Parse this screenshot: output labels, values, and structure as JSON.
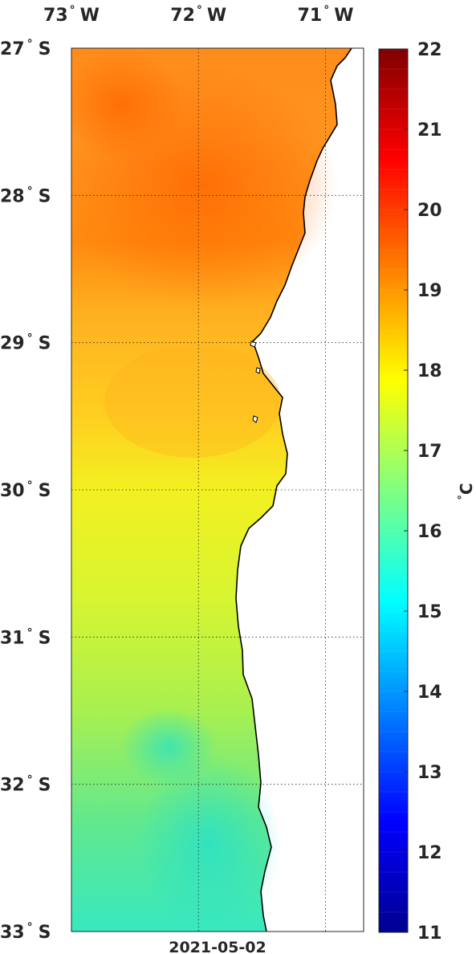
{
  "map": {
    "date_label": "2021-05-02",
    "lon_ticks": [
      {
        "label": "73",
        "suffix": "W",
        "value": -73
      },
      {
        "label": "72",
        "suffix": "W",
        "value": -72
      },
      {
        "label": "71",
        "suffix": "W",
        "value": -71
      }
    ],
    "lat_ticks": [
      {
        "label": "27",
        "suffix": "S",
        "value": -27
      },
      {
        "label": "28",
        "suffix": "S",
        "value": -28
      },
      {
        "label": "29",
        "suffix": "S",
        "value": -29
      },
      {
        "label": "30",
        "suffix": "S",
        "value": -30
      },
      {
        "label": "31",
        "suffix": "S",
        "value": -31
      },
      {
        "label": "32",
        "suffix": "S",
        "value": -32
      },
      {
        "label": "33",
        "suffix": "S",
        "value": -33
      }
    ],
    "lon_range": [
      -73.0,
      -70.7
    ],
    "lat_range": [
      -33,
      -27
    ],
    "grid": "dotted"
  },
  "colorbar": {
    "unit_label": "C",
    "range": [
      11,
      22
    ],
    "ticks": [
      "22",
      "21",
      "20",
      "19",
      "18",
      "17",
      "16",
      "15",
      "14",
      "13",
      "12",
      "11"
    ],
    "colormap": "jet",
    "colors_bottom_to_top": [
      "#00008f",
      "#0000ff",
      "#0080ff",
      "#00ffff",
      "#80ff80",
      "#ffff00",
      "#ff8000",
      "#ff0000",
      "#800000"
    ]
  },
  "sst_field": {
    "description_units": "degrees C",
    "regions": [
      {
        "lat": -27.5,
        "value": 19.0
      },
      {
        "lat": -28.3,
        "value": 19.3
      },
      {
        "lat": -29.3,
        "value": 18.2
      },
      {
        "lat": -30.5,
        "value": 17.4
      },
      {
        "lat": -31.5,
        "value": 16.9
      },
      {
        "lat": -32.5,
        "value": 16.1
      },
      {
        "lat": -33.0,
        "value": 15.8
      }
    ]
  }
}
